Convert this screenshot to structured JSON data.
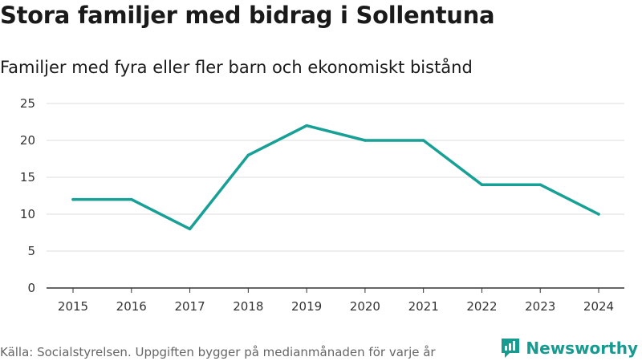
{
  "header": {
    "title": "Stora familjer med bidrag i Sollentuna",
    "subtitle": "Familjer med fyra eller fler barn och ekonomiskt bistånd"
  },
  "footer": {
    "source": "Källa: Socialstyrelsen. Uppgiften bygger på medianmånaden för varje år",
    "brand": "Newsworthy"
  },
  "colors": {
    "line": "#17a096",
    "grid": "#dddddd",
    "axis": "#333333",
    "brand": "#179a8f"
  },
  "chart_data": {
    "type": "line",
    "title": "Stora familjer med bidrag i Sollentuna",
    "subtitle": "Familjer med fyra eller fler barn och ekonomiskt bistånd",
    "xlabel": "",
    "ylabel": "",
    "x": [
      "2015",
      "2016",
      "2017",
      "2018",
      "2019",
      "2020",
      "2021",
      "2022",
      "2023",
      "2024"
    ],
    "series": [
      {
        "name": "Familjer",
        "values": [
          12,
          12,
          8,
          18,
          22,
          20,
          20,
          14,
          14,
          10
        ]
      }
    ],
    "ylim": [
      0,
      25
    ],
    "yticks": [
      "0",
      "5",
      "10",
      "15",
      "20",
      "25"
    ],
    "grid": true
  }
}
